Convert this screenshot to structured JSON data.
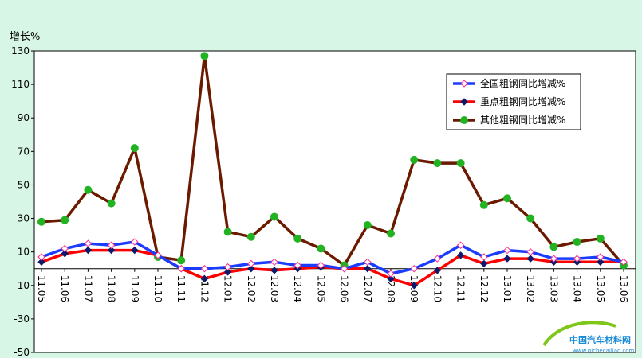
{
  "chart_data": {
    "type": "line",
    "ylabel": "增长%",
    "ylim": [
      -50,
      130
    ],
    "yticks": [
      130,
      110,
      90,
      70,
      50,
      30,
      10,
      -10,
      -30,
      -50
    ],
    "grid": false,
    "legend_position": "top-right",
    "categories": [
      "11.05",
      "11.06",
      "11.07",
      "11.08",
      "11.09",
      "11.10",
      "11.11",
      "11.12",
      "12.01",
      "12.02",
      "12.03",
      "12.04",
      "12.05",
      "12.06",
      "12.07",
      "12.08",
      "12.09",
      "12.10",
      "12.11",
      "12.12",
      "13.01",
      "13.02",
      "13.03",
      "13.04",
      "13.05",
      "13.06"
    ],
    "series": [
      {
        "name": "全国粗钢同比增减%",
        "line_color": "#1a3cff",
        "marker": "diamond",
        "marker_fill": "#ffffff",
        "marker_stroke": "#ff2b8c",
        "values": [
          7,
          12,
          15,
          14,
          16,
          8,
          0,
          0,
          1,
          3,
          4,
          2,
          2,
          0,
          4,
          -3,
          0,
          6,
          14,
          7,
          11,
          10,
          6,
          6,
          7,
          4
        ]
      },
      {
        "name": "重点粗钢同比增减%",
        "line_color": "#ff0000",
        "marker": "diamond",
        "marker_fill": "#0d1a6b",
        "marker_stroke": "#0d1a6b",
        "values": [
          4,
          9,
          11,
          11,
          11,
          8,
          0,
          -6,
          -2,
          0,
          -1,
          0,
          1,
          0,
          0,
          -6,
          -10,
          -1,
          8,
          3,
          6,
          6,
          4,
          4,
          4,
          4
        ]
      },
      {
        "name": "其他粗钢同比增减%",
        "line_color": "#6b1a00",
        "marker": "circle",
        "marker_fill": "#22b322",
        "marker_stroke": "#22b322",
        "values": [
          28,
          29,
          47,
          39,
          72,
          7,
          5,
          127,
          22,
          19,
          31,
          18,
          12,
          2,
          26,
          21,
          65,
          63,
          63,
          38,
          42,
          30,
          13,
          16,
          18,
          2
        ]
      }
    ]
  },
  "watermark": {
    "title": "中国汽车材料网",
    "url": "www.qichecailiao.com"
  }
}
